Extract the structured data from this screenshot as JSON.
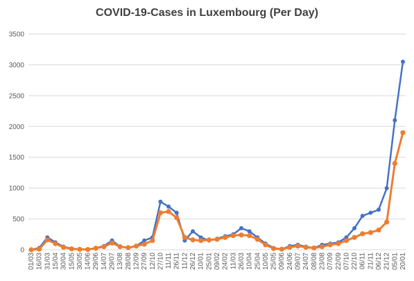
{
  "chart_data": {
    "type": "line",
    "title": "COVID-19-Cases in Luxembourg (Per Day)",
    "xlabel": "",
    "ylabel": "",
    "ylim": [
      0,
      3500
    ],
    "yticks": [
      0,
      500,
      1000,
      1500,
      2000,
      2500,
      3000,
      3500
    ],
    "grid": true,
    "legend": "none",
    "categories": [
      "01/03",
      "16/03",
      "31/03",
      "15/04",
      "30/04",
      "15/05",
      "30/05",
      "14/06",
      "29/06",
      "14/07",
      "29/07",
      "13/08",
      "28/08",
      "12/09",
      "27/09",
      "12/10",
      "27/10",
      "11/11",
      "26/11",
      "11/12",
      "26/12",
      "10/01",
      "25/01",
      "09/02",
      "24/02",
      "11/03",
      "26/03",
      "10/04",
      "25/04",
      "10/05",
      "25/05",
      "09/06",
      "24/06",
      "09/07",
      "24/07",
      "08/08",
      "23/08",
      "07/09",
      "22/09",
      "07/10",
      "22/10",
      "06/11",
      "21/11",
      "06/12",
      "21/12",
      "05/01",
      "20/01"
    ],
    "series": [
      {
        "name": "",
        "color": "#4472c4",
        "marker": "circle",
        "values": [
          0,
          30,
          200,
          120,
          50,
          20,
          10,
          5,
          30,
          60,
          150,
          50,
          30,
          60,
          150,
          200,
          780,
          700,
          600,
          150,
          300,
          200,
          150,
          180,
          220,
          250,
          350,
          300,
          200,
          100,
          30,
          10,
          60,
          80,
          50,
          30,
          80,
          100,
          120,
          200,
          350,
          550,
          600,
          650,
          1000,
          2100,
          3050
        ]
      },
      {
        "name": "",
        "color": "#ed7d31",
        "marker": "circle",
        "values": [
          0,
          10,
          160,
          100,
          40,
          15,
          8,
          5,
          25,
          50,
          110,
          50,
          35,
          60,
          90,
          150,
          600,
          620,
          520,
          200,
          160,
          150,
          160,
          170,
          200,
          230,
          240,
          230,
          170,
          80,
          20,
          10,
          40,
          60,
          40,
          30,
          50,
          80,
          100,
          150,
          200,
          260,
          280,
          320,
          450,
          1400,
          1900
        ]
      }
    ]
  }
}
